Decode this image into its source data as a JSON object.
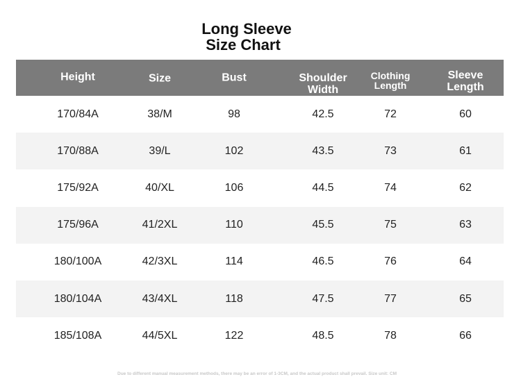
{
  "title": [
    "Long Sleeve",
    "Size Chart"
  ],
  "table": {
    "header": [
      [
        "Height"
      ],
      [
        "Size"
      ],
      [
        "Bust"
      ],
      [
        "Shoulder",
        "Width"
      ],
      [
        "Clothing",
        "Length"
      ],
      [
        "Sleeve",
        "Length"
      ]
    ],
    "rows": [
      [
        "170/84A",
        "38/M",
        98,
        42.5,
        72,
        60
      ],
      [
        "170/88A",
        "39/L",
        102,
        43.5,
        73,
        61
      ],
      [
        "175/92A",
        "40/XL",
        106,
        44.5,
        74,
        62
      ],
      [
        "175/96A",
        "41/2XL",
        110,
        45.5,
        75,
        63
      ],
      [
        "180/100A",
        "42/3XL",
        114,
        46.5,
        76,
        64
      ],
      [
        "180/104A",
        "43/4XL",
        118,
        47.5,
        77,
        65
      ],
      [
        "185/108A",
        "44/5XL",
        122,
        48.5,
        78,
        66
      ]
    ]
  },
  "footnote": "Due to different manual measurement methods, there may be an error of 1-3CM, and the actual product shall prevail. Size unit: CM"
}
